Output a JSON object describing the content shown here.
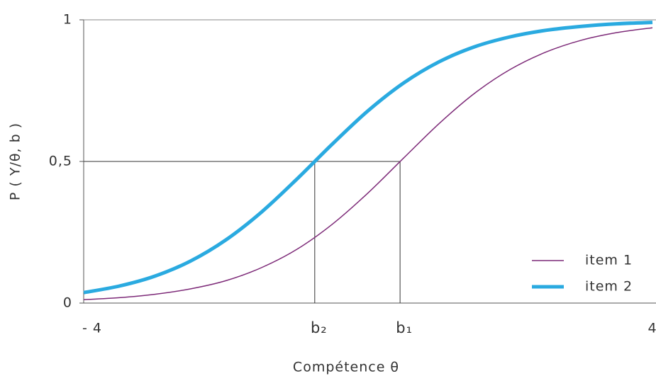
{
  "chart_data": {
    "type": "line",
    "y_label": "P ( Y/θ, b )",
    "x_label": "Compétence θ",
    "x": [
      -4,
      -3.5,
      -3,
      -2.5,
      -2,
      -1.5,
      -1,
      -0.5,
      0,
      0.5,
      1,
      1.5,
      2,
      2.5,
      3,
      3.5,
      4
    ],
    "series": [
      {
        "name": "item 1",
        "color": "#7d2a78",
        "width": 1.5,
        "values": [
          0.012,
          0.019,
          0.031,
          0.05,
          0.079,
          0.125,
          0.19,
          0.279,
          0.389,
          0.512,
          0.634,
          0.741,
          0.825,
          0.886,
          0.928,
          0.955,
          0.972
        ]
      },
      {
        "name": "item 2",
        "color": "#2aaae0",
        "width": 5,
        "values": [
          0.037,
          0.06,
          0.095,
          0.148,
          0.223,
          0.321,
          0.438,
          0.562,
          0.679,
          0.777,
          0.852,
          0.905,
          0.94,
          0.963,
          0.977,
          0.986,
          0.991
        ]
      }
    ],
    "markers": [
      {
        "label": "b₂",
        "x": -0.75,
        "y": 0.5
      },
      {
        "label": "b₁",
        "x": 0.45,
        "y": 0.5
      }
    ],
    "xlim": [
      -4,
      4
    ],
    "ylim": [
      0,
      1
    ],
    "xticks": [
      {
        "value": -4,
        "label": "- 4"
      },
      4
    ],
    "yticks": [
      0,
      {
        "value": 0.5,
        "label": "0,5"
      },
      1
    ],
    "legend": "lower right"
  }
}
